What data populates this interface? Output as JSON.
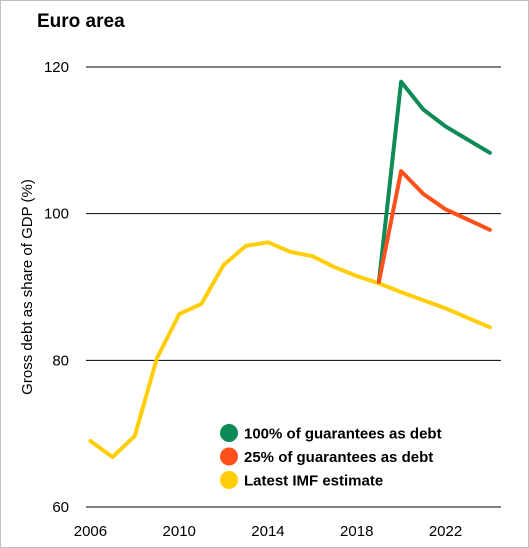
{
  "chart_data": {
    "type": "line",
    "title": "Euro area",
    "xlabel": "",
    "ylabel": "Gross debt as share of GDP (%)",
    "xlim": [
      2005.8,
      2024.5
    ],
    "ylim": [
      60,
      120
    ],
    "yticks": [
      60,
      80,
      100,
      120
    ],
    "xticks": [
      2006,
      2010,
      2014,
      2018,
      2022
    ],
    "grid": "horizontal",
    "legend_position": "bottom-right",
    "series": [
      {
        "name": "100% of guarantees as debt",
        "color": "#0e8a57",
        "x": [
          2019,
          2020,
          2021,
          2022,
          2023,
          2024
        ],
        "y": [
          90.7,
          118.0,
          114.2,
          111.9,
          110.1,
          108.3
        ]
      },
      {
        "name": "25% of guarantees as debt",
        "color": "#ff4f1a",
        "x": [
          2019,
          2020,
          2021,
          2022,
          2023,
          2024
        ],
        "y": [
          90.7,
          105.8,
          102.7,
          100.6,
          99.2,
          97.8
        ]
      },
      {
        "name": "Latest IMF estimate",
        "color": "#ffcd0a",
        "x": [
          2006,
          2007,
          2008,
          2009,
          2010,
          2011,
          2012,
          2013,
          2014,
          2015,
          2016,
          2017,
          2018,
          2019,
          2020,
          2021,
          2022,
          2023,
          2024
        ],
        "y": [
          69.0,
          66.8,
          69.7,
          80.3,
          86.3,
          87.7,
          93.0,
          95.6,
          96.1,
          94.8,
          94.2,
          92.7,
          91.5,
          90.5,
          89.3,
          88.2,
          87.1,
          85.8,
          84.5
        ]
      }
    ]
  }
}
